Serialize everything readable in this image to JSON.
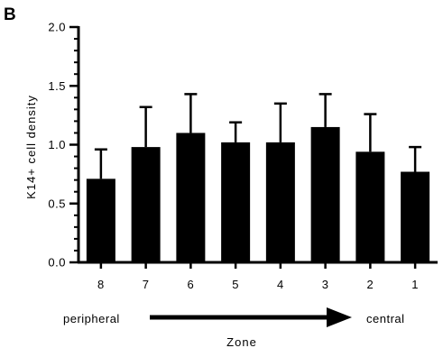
{
  "panel_label": "B",
  "annotations": {
    "left": "peripheral",
    "right": "central"
  },
  "chart_data": {
    "type": "bar",
    "title": "",
    "xlabel": "Zone",
    "ylabel": "K14+ cell density",
    "categories": [
      "8",
      "7",
      "6",
      "5",
      "4",
      "3",
      "2",
      "1"
    ],
    "values": [
      0.71,
      0.98,
      1.1,
      1.02,
      1.02,
      1.15,
      0.94,
      0.77
    ],
    "errors": [
      0.25,
      0.34,
      0.33,
      0.17,
      0.33,
      0.28,
      0.32,
      0.21
    ],
    "ylim": [
      0,
      2.0
    ],
    "yticks": [
      "0.0",
      "0.5",
      "1.0",
      "1.5",
      "2.0"
    ],
    "ytick_values": [
      0,
      0.5,
      1.0,
      1.5,
      2.0
    ],
    "minor_ticks_per_major": 5,
    "bar_color": "#000000",
    "grid": false,
    "legend": "none"
  }
}
